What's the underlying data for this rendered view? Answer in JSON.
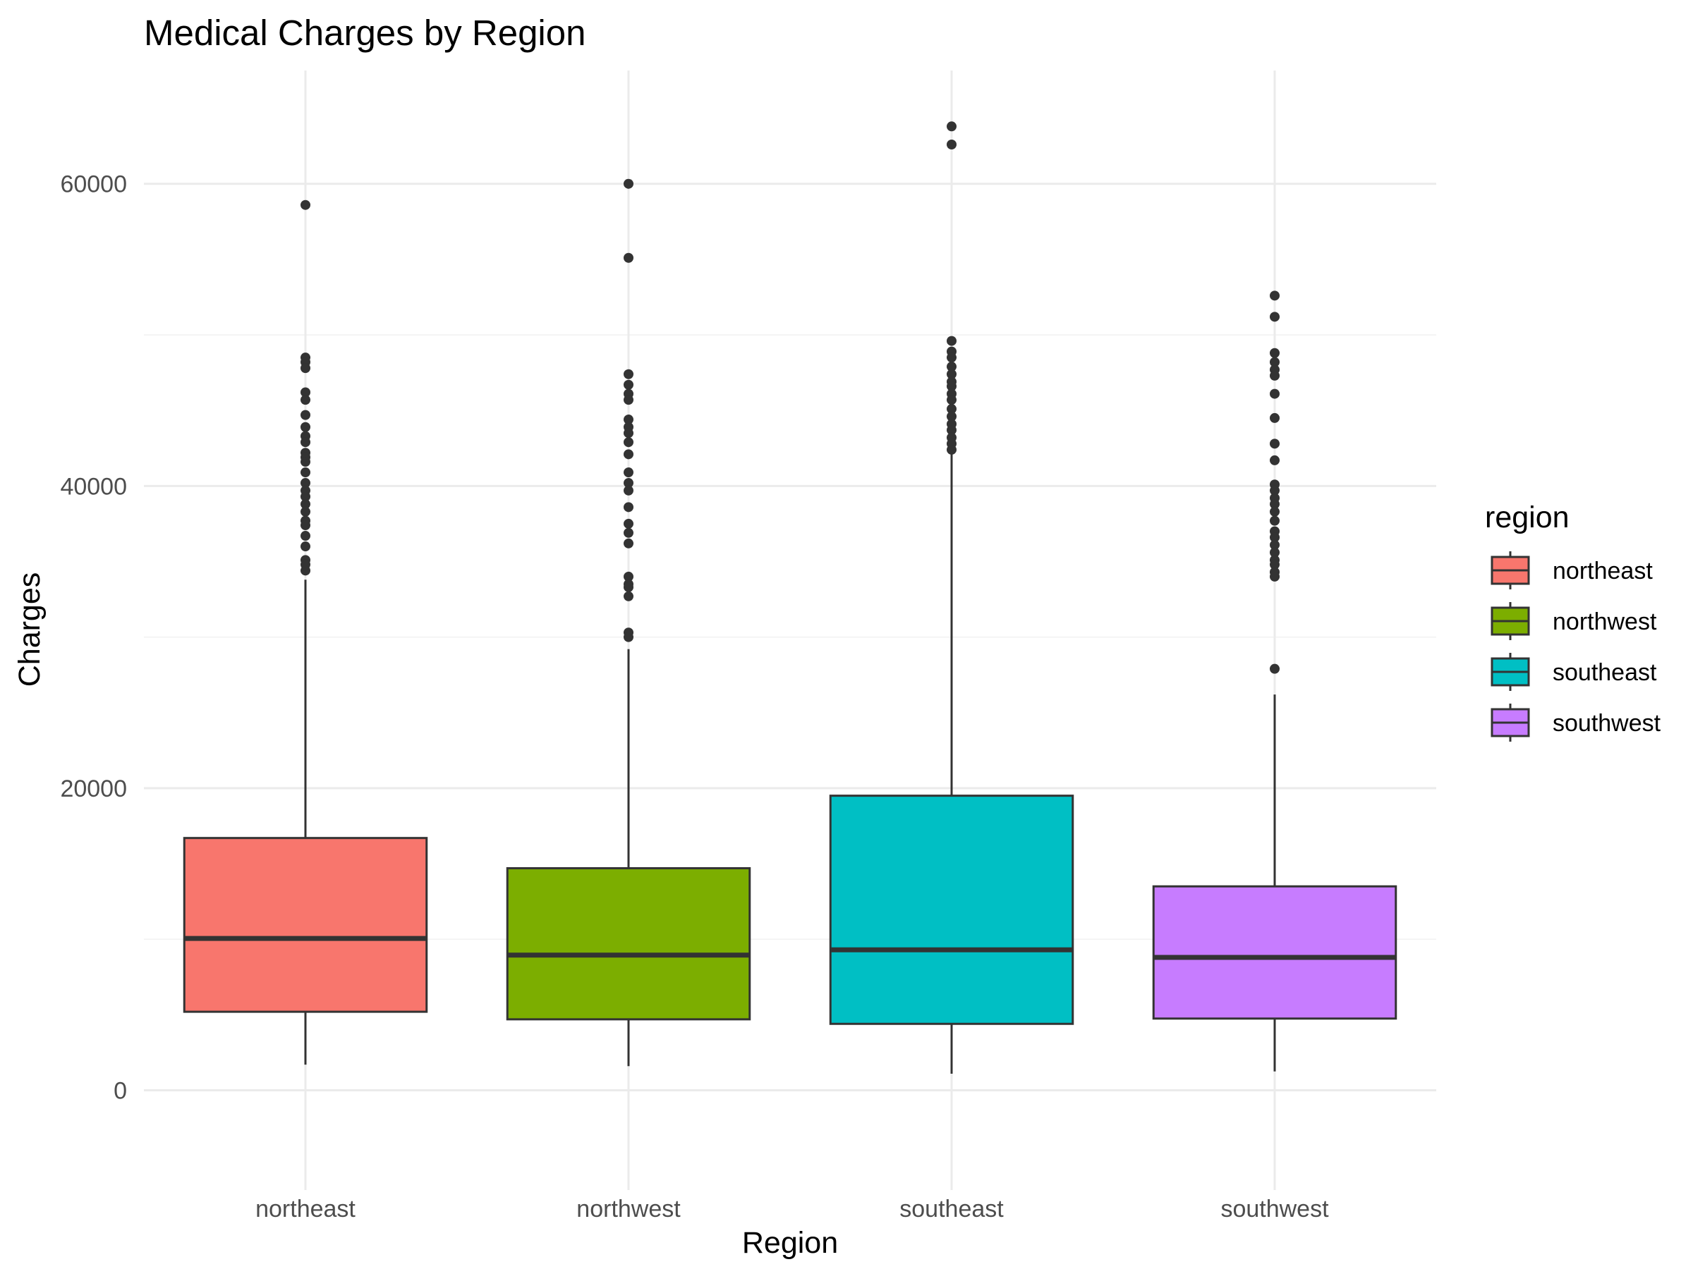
{
  "chart_data": {
    "type": "boxplot",
    "title": "Medical Charges by Region",
    "xlabel": "Region",
    "ylabel": "Charges",
    "ylim": [
      -6600,
      67500
    ],
    "yticks": [
      0,
      20000,
      40000,
      60000
    ],
    "ytick_labels": [
      "0",
      "20000",
      "40000",
      "60000"
    ],
    "grid": true,
    "legend": {
      "title": "region",
      "position": "right"
    },
    "categories": [
      "northeast",
      "northwest",
      "southeast",
      "southwest"
    ],
    "series": [
      {
        "name": "northeast",
        "color": "#F8766D",
        "whisker_low": 1700,
        "q1": 5200,
        "median": 10050,
        "q3": 16700,
        "whisker_high": 33800,
        "outliers": [
          58600,
          48500,
          48200,
          47800,
          46200,
          45700,
          44700,
          43900,
          43300,
          42900,
          42200,
          41900,
          41600,
          40900,
          40200,
          39700,
          39300,
          38800,
          38300,
          37700,
          37400,
          36700,
          36000,
          35100,
          34800,
          34400
        ]
      },
      {
        "name": "northwest",
        "color": "#7CAE00",
        "whisker_low": 1600,
        "q1": 4700,
        "median": 8950,
        "q3": 14700,
        "whisker_high": 29200,
        "outliers": [
          60000,
          55100,
          47400,
          46700,
          46100,
          45700,
          44400,
          43900,
          43500,
          42900,
          42100,
          40900,
          40200,
          39700,
          38600,
          37500,
          36900,
          36200,
          34000,
          33500,
          33300,
          32700,
          30300,
          30000
        ]
      },
      {
        "name": "southeast",
        "color": "#00BFC4",
        "whisker_low": 1100,
        "q1": 4400,
        "median": 9300,
        "q3": 19500,
        "whisker_high": 42100,
        "outliers": [
          63800,
          62600,
          49600,
          48900,
          48500,
          47900,
          47400,
          46900,
          46600,
          46100,
          45700,
          45100,
          44600,
          44100,
          43700,
          43200,
          42800,
          42400
        ]
      },
      {
        "name": "southwest",
        "color": "#C77CFF",
        "whisker_low": 1250,
        "q1": 4750,
        "median": 8800,
        "q3": 13500,
        "whisker_high": 26200,
        "outliers": [
          52600,
          51200,
          48800,
          48200,
          47700,
          47300,
          46100,
          44500,
          42800,
          41700,
          40100,
          39700,
          39200,
          38800,
          38300,
          37700,
          37000,
          36600,
          36100,
          35600,
          35100,
          34800,
          34300,
          34000,
          27900
        ]
      }
    ]
  }
}
